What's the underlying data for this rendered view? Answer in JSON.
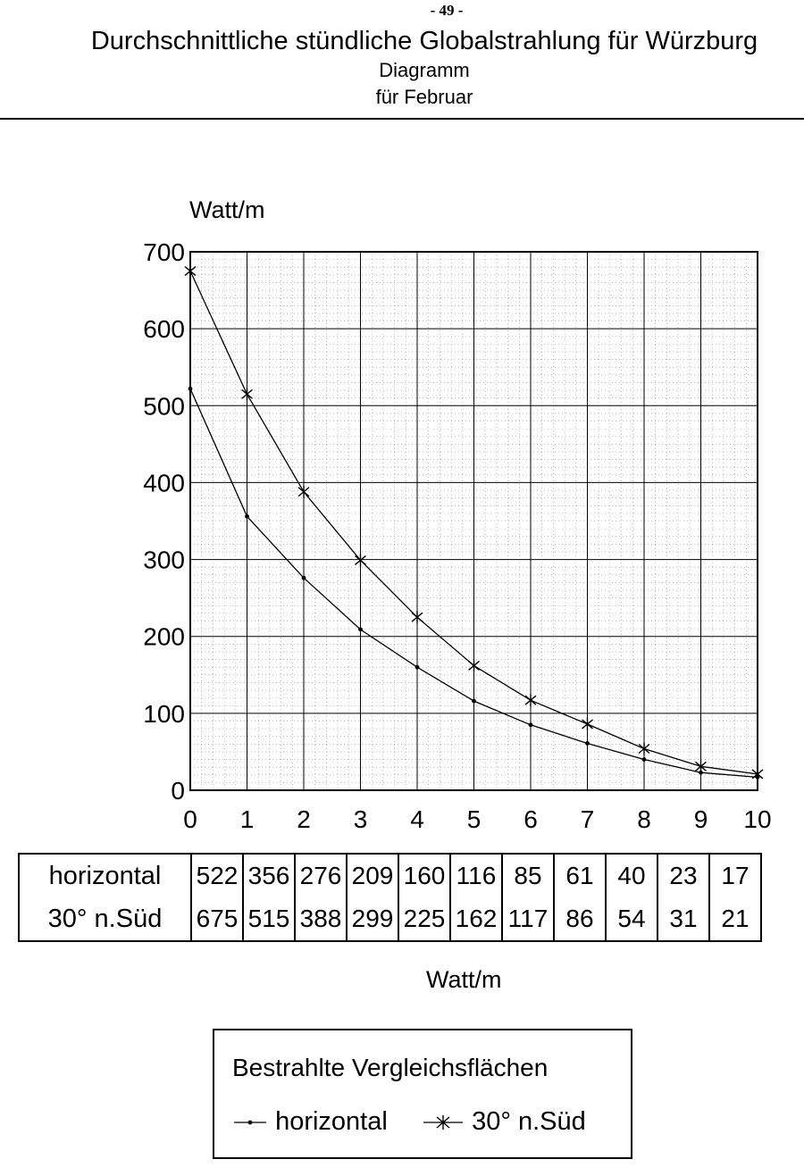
{
  "page_number": "- 49 -",
  "header": {
    "title": "Durchschnittliche stündliche Globalstrahlung für Würzburg",
    "subtitle1": "Diagramm",
    "subtitle2": "für Februar"
  },
  "chart_data": {
    "type": "line",
    "ylabel": "Watt/m",
    "xlabel": "Watt/m",
    "x": [
      0,
      1,
      2,
      3,
      4,
      5,
      6,
      7,
      8,
      9,
      10
    ],
    "xticks": [
      "0",
      "1",
      "2",
      "3",
      "4",
      "5",
      "6",
      "7",
      "8",
      "9",
      "10"
    ],
    "yticks": [
      "0",
      "100",
      "200",
      "300",
      "400",
      "500",
      "600",
      "700"
    ],
    "xlim": [
      0,
      10
    ],
    "ylim": [
      0,
      700
    ],
    "grid": true,
    "series": [
      {
        "name": "horizontal",
        "marker": "dot",
        "values": [
          522,
          356,
          276,
          209,
          160,
          116,
          85,
          61,
          40,
          23,
          17
        ]
      },
      {
        "name": "30° n.Süd",
        "marker": "asterisk",
        "values": [
          675,
          515,
          388,
          299,
          225,
          162,
          117,
          86,
          54,
          31,
          21
        ]
      }
    ]
  },
  "table": {
    "rows": [
      {
        "label": "horizontal",
        "values": [
          "522",
          "356",
          "276",
          "209",
          "160",
          "116",
          "85",
          "61",
          "40",
          "23",
          "17"
        ]
      },
      {
        "label": "30° n.Süd",
        "values": [
          "675",
          "515",
          "388",
          "299",
          "225",
          "162",
          "117",
          "86",
          "54",
          "31",
          "21"
        ]
      }
    ]
  },
  "legend": {
    "title": "Bestrahlte Vergleichsflächen",
    "items": [
      {
        "label": "horizontal",
        "marker": "dot"
      },
      {
        "label": "30° n.Süd",
        "marker": "asterisk"
      }
    ]
  }
}
